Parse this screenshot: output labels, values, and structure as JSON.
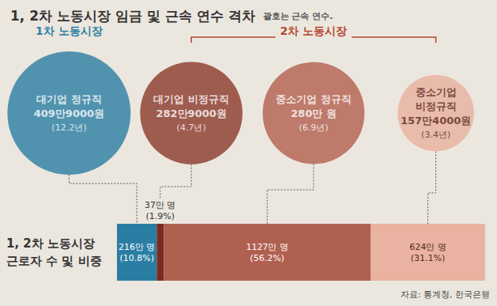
{
  "title": "1, 2차 노동시장 임금 및 근속 연수 격차",
  "note": "괄호는 근속 연수.",
  "source": "자료: 통계청, 한국은행",
  "chart_data": [
    {
      "type": "bubble",
      "groups": [
        {
          "label": "1차 노동시장",
          "color": "#2a7ea3",
          "circles": [
            {
              "label": "대기업 정규직",
              "wage": 409.9,
              "wage_label": "409만9000원",
              "tenure_label": "(12.2년)",
              "color": "#2a7ea3"
            }
          ]
        },
        {
          "label": "2차 노동시장",
          "color": "#b5462f",
          "circles": [
            {
              "label": "대기업 비정규직",
              "wage": 282.9,
              "wage_label": "282만9000원",
              "tenure_label": "(4.7년)",
              "color": "#8b3a2a"
            },
            {
              "label": "중소기업 정규직",
              "wage": 280,
              "wage_label": "280만 원",
              "tenure_label": "(6.9년)",
              "color": "#b35f4e"
            },
            {
              "label": "중소기업 비정규직",
              "wage": 157.4,
              "wage_label": "157만4000원",
              "tenure_label": "(3.4년)",
              "color": "#e9b09e"
            }
          ]
        }
      ]
    },
    {
      "type": "bar",
      "title": [
        "1, 2차 노동시장",
        "근로자 수 및 비중"
      ],
      "orientation": "horizontal",
      "stacked": true,
      "data_labels": true,
      "tick_labels": false,
      "xlim": [
        0,
        100
      ],
      "series": [
        {
          "color": "#2a7ea3",
          "values": [
            10.8
          ],
          "value_labels": [
            "(10.8%)"
          ],
          "workers_label": "216만 명"
        },
        {
          "color": "#7a2c22",
          "values": [
            1.9
          ],
          "value_labels": [
            "(1.9%)"
          ],
          "workers_label": "37만 명"
        },
        {
          "color": "#b0604f",
          "values": [
            56.2
          ],
          "value_labels": [
            "(56.2%)"
          ],
          "workers_label": "1127만 명"
        },
        {
          "color": "#eab3a1",
          "values": [
            31.1
          ],
          "value_labels": [
            "(31.1%)"
          ],
          "workers_label": "624만 명"
        }
      ]
    }
  ]
}
